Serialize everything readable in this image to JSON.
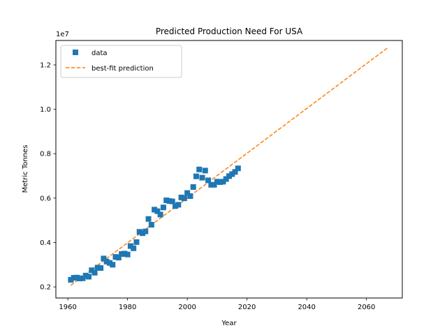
{
  "chart_data": {
    "type": "scatter",
    "title": "Predicted Production Need For USA",
    "xlabel": "Year",
    "ylabel": "Metric Tonnes",
    "y_offset_label": "1e7",
    "xlim": [
      1956,
      2072
    ],
    "ylim": [
      1500000,
      13100000
    ],
    "x_ticks": [
      1960,
      1980,
      2000,
      2020,
      2040,
      2060
    ],
    "x_tick_labels": [
      "1960",
      "1980",
      "2000",
      "2020",
      "2040",
      "2060"
    ],
    "y_ticks": [
      2000000,
      4000000,
      6000000,
      8000000,
      10000000,
      12000000
    ],
    "y_tick_labels": [
      "0.2",
      "0.4",
      "0.6",
      "0.8",
      "1.0",
      "1.2"
    ],
    "grid": false,
    "legend_placement": "upper-left",
    "series": [
      {
        "name": "data",
        "type": "scatter",
        "marker": "square",
        "color": "#1f77b4",
        "x": [
          1961,
          1962,
          1963,
          1964,
          1965,
          1966,
          1967,
          1968,
          1969,
          1970,
          1971,
          1972,
          1973,
          1974,
          1975,
          1976,
          1977,
          1978,
          1979,
          1980,
          1981,
          1982,
          1983,
          1984,
          1985,
          1986,
          1987,
          1988,
          1989,
          1990,
          1991,
          1992,
          1993,
          1994,
          1995,
          1996,
          1997,
          1998,
          1999,
          2000,
          2001,
          2002,
          2003,
          2004,
          2005,
          2006,
          2007,
          2008,
          2009,
          2010,
          2011,
          2012,
          2013,
          2014,
          2015,
          2016,
          2017
        ],
        "y": [
          2320000,
          2410000,
          2420000,
          2380000,
          2390000,
          2510000,
          2460000,
          2750000,
          2640000,
          2870000,
          2850000,
          3280000,
          3140000,
          3080000,
          3000000,
          3350000,
          3320000,
          3480000,
          3500000,
          3460000,
          3840000,
          3740000,
          4020000,
          4480000,
          4420000,
          4500000,
          5060000,
          4800000,
          5480000,
          5410000,
          5260000,
          5580000,
          5900000,
          5870000,
          5850000,
          5640000,
          5700000,
          6030000,
          5990000,
          6230000,
          6090000,
          6500000,
          6980000,
          7290000,
          6920000,
          7240000,
          6800000,
          6600000,
          6600000,
          6740000,
          6720000,
          6740000,
          6860000,
          6990000,
          7080000,
          7180000,
          7340000
        ]
      },
      {
        "name": "best-fit prediction",
        "type": "line",
        "style": "dashed",
        "color": "#ff7f0e",
        "x": [
          1961,
          2067
        ],
        "y": [
          2070000,
          12760000
        ]
      }
    ]
  }
}
